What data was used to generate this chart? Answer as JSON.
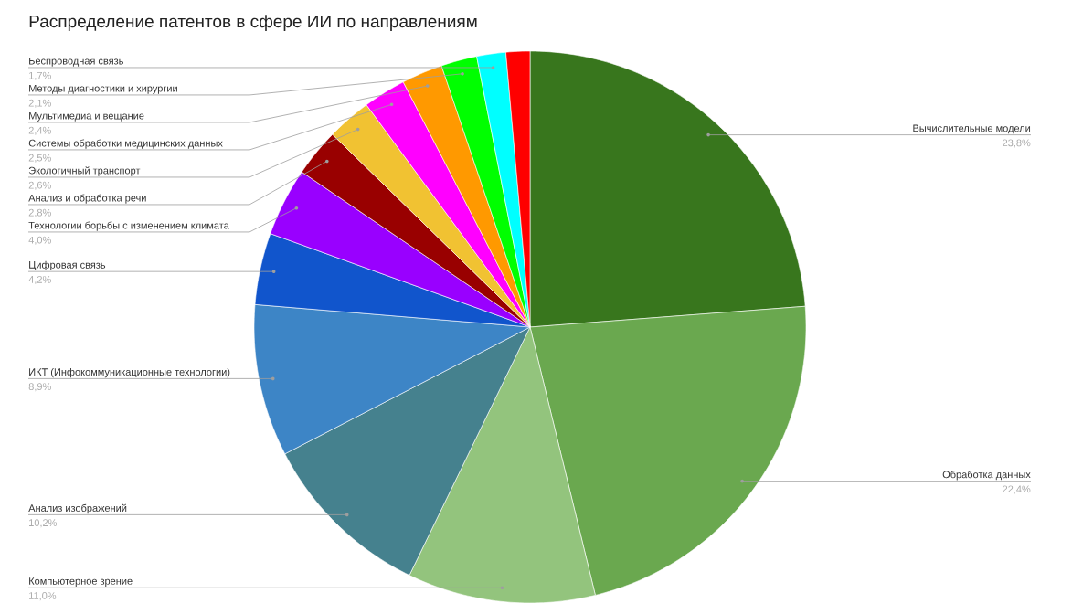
{
  "chart_data": {
    "type": "pie",
    "title": "Распределение патентов в сфере ИИ по направлениям",
    "categories": [
      "Вычислительные модели",
      "Обработка данных",
      "Компьютерное зрение",
      "Анализ изображений",
      "ИКТ (Инфокоммуникационные технологии)",
      "Цифровая связь",
      "Технологии борьбы с изменением климата",
      "Анализ и обработка речи",
      "Экологичный транспорт",
      "Системы обработки медицинских данных",
      "Мультимедиа и вещание",
      "Методы диагностики и хирургии",
      "Беспроводная связь",
      null
    ],
    "values": [
      23.8,
      22.4,
      11.0,
      10.2,
      8.9,
      4.2,
      4.0,
      2.8,
      2.6,
      2.5,
      2.4,
      2.1,
      1.7,
      1.4
    ],
    "colors": [
      "#38761d",
      "#6aa84f",
      "#93c47d",
      "#45818e",
      "#3d85c6",
      "#1155cc",
      "#9900ff",
      "#990000",
      "#f1c232",
      "#ff00ff",
      "#ff9900",
      "#00ff00",
      "#00ffff",
      "#ff0000"
    ],
    "value_labels": [
      "23,8%",
      "22,4%",
      "11,0%",
      "10,2%",
      "8,9%",
      "4,2%",
      "4,0%",
      "2,8%",
      "2,6%",
      "2,5%",
      "2,4%",
      "2,1%",
      "1,7%",
      null
    ]
  }
}
